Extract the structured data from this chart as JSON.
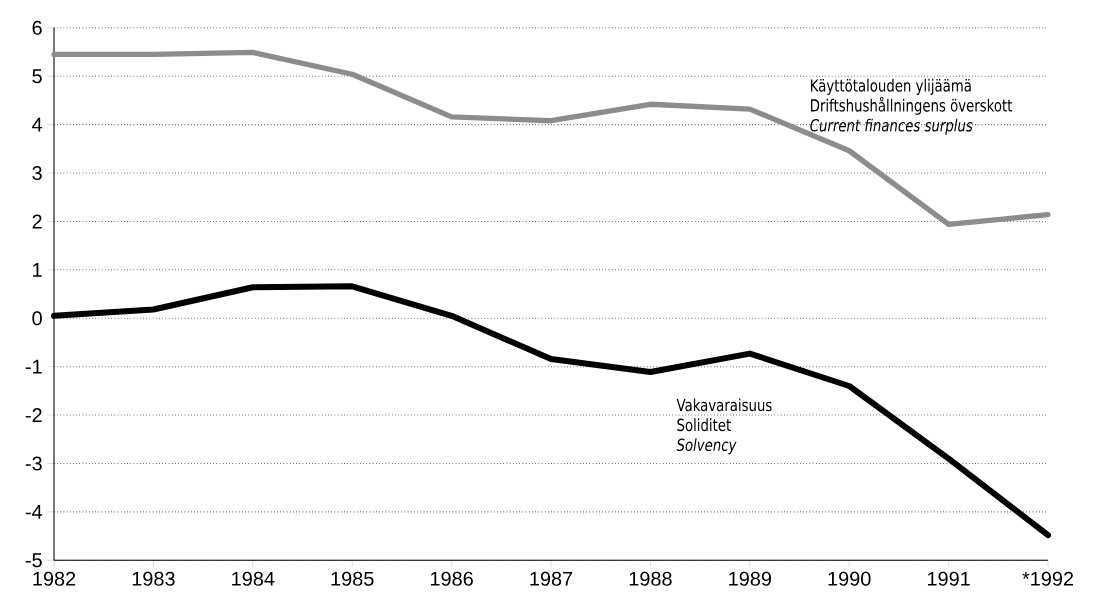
{
  "chart_data": {
    "type": "line",
    "categories": [
      "1982",
      "1983",
      "1984",
      "1985",
      "1986",
      "1987",
      "1988",
      "1989",
      "1990",
      "1991",
      "*1992"
    ],
    "series": [
      {
        "name": "Käyttötalouden ylijäämä",
        "color": "#8c8c8c",
        "values": [
          5.45,
          5.45,
          5.49,
          5.04,
          4.16,
          4.08,
          4.42,
          4.32,
          3.46,
          1.94,
          2.14
        ]
      },
      {
        "name": "Vakavaraisuus",
        "color": "#000000",
        "values": [
          0.05,
          0.18,
          0.64,
          0.66,
          0.05,
          -0.84,
          -1.11,
          -0.73,
          -1.4,
          -2.9,
          -4.48
        ]
      }
    ],
    "annotations": [
      "Driftshushållningens överskott",
      "Current finances surplus",
      "Soliditet",
      "Solvency"
    ],
    "ylim": [
      -5,
      6
    ],
    "yticks": [
      -5,
      -4,
      -3,
      -2,
      -1,
      0,
      1,
      2,
      3,
      4,
      5,
      6
    ],
    "grid": "y",
    "line_style": "solid"
  }
}
